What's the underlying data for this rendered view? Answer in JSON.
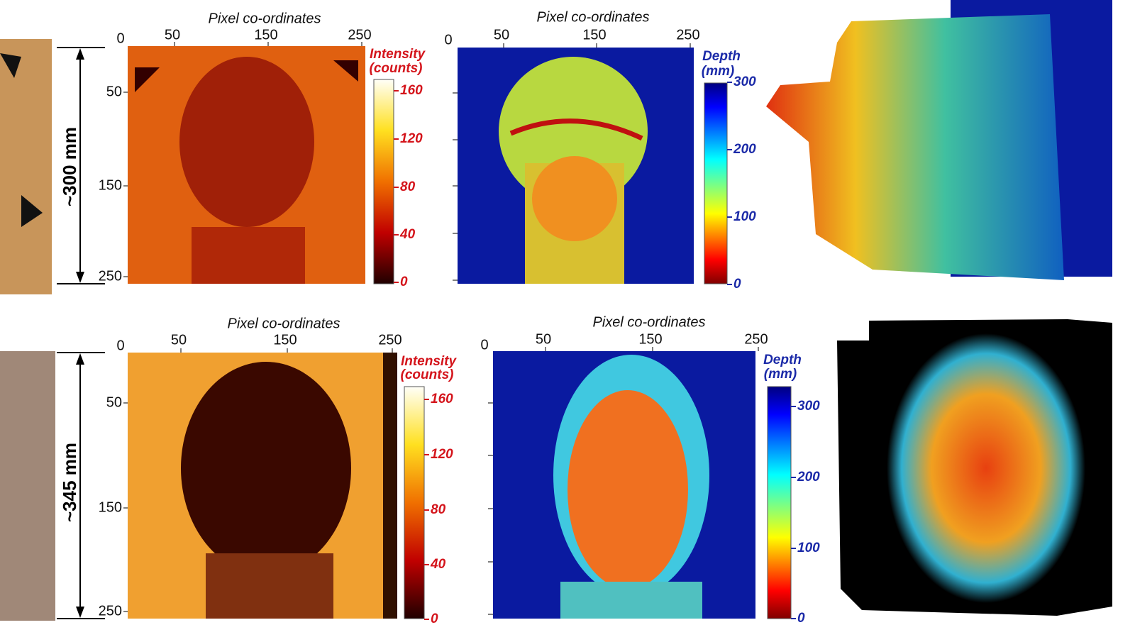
{
  "rows": [
    {
      "scale_label": "~300 mm",
      "intensity": {
        "title": "Pixel co-ordinates",
        "x_ticks": [
          "0",
          "50",
          "150",
          "250"
        ],
        "y_ticks": [
          "50",
          "150",
          "250"
        ],
        "colorbar_label": [
          "Intensity",
          "(counts)"
        ],
        "colorbar_ticks": [
          "160",
          "120",
          "80",
          "40",
          "0"
        ]
      },
      "depth": {
        "title": "Pixel co-ordinates",
        "x_ticks": [
          "0",
          "50",
          "150",
          "250"
        ],
        "colorbar_label": [
          "Depth",
          "(mm)"
        ],
        "colorbar_ticks": [
          "300",
          "200",
          "100",
          "0"
        ]
      }
    },
    {
      "scale_label": "~345 mm",
      "intensity": {
        "title": "Pixel co-ordinates",
        "x_ticks": [
          "0",
          "50",
          "150",
          "250"
        ],
        "y_ticks": [
          "50",
          "150",
          "250"
        ],
        "colorbar_label": [
          "Intensity",
          "(counts)"
        ],
        "colorbar_ticks": [
          "160",
          "120",
          "80",
          "40",
          "0"
        ]
      },
      "depth": {
        "title": "Pixel co-ordinates",
        "x_ticks": [
          "0",
          "50",
          "150",
          "250"
        ],
        "colorbar_label": [
          "Depth",
          "(mm)"
        ],
        "colorbar_ticks": [
          "300",
          "200",
          "100",
          "0"
        ]
      }
    }
  ]
}
